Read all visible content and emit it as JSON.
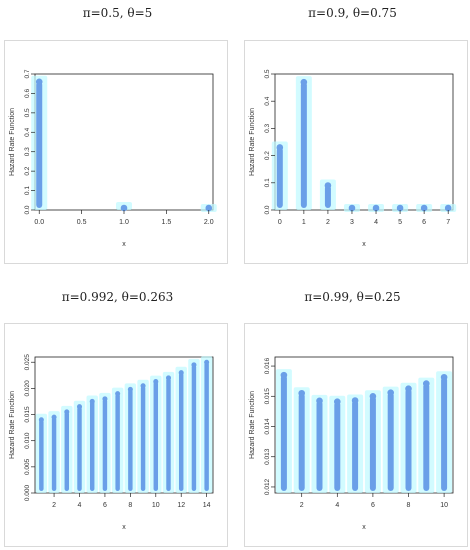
{
  "chart_data": [
    {
      "type": "bar",
      "title": "π=0.5, θ=5",
      "xlabel": "x",
      "ylabel": "Hazard Rate Function",
      "x": [
        0,
        1,
        2
      ],
      "values": [
        0.66,
        0.01,
        0.0
      ],
      "xlim": [
        -0.05,
        2.05
      ],
      "ylim": [
        0,
        0.7
      ],
      "xticks": [
        "0.0",
        "0.5",
        "1.0",
        "1.5",
        "2.0"
      ],
      "xtick_values": [
        0,
        0.5,
        1,
        1.5,
        2
      ],
      "yticks": [
        "0.0",
        "0.1",
        "0.2",
        "0.3",
        "0.4",
        "0.5",
        "0.6",
        "0.7"
      ],
      "ytick_values": [
        0,
        0.1,
        0.2,
        0.3,
        0.4,
        0.5,
        0.6,
        0.7
      ]
    },
    {
      "type": "bar",
      "title": "π=0.9, θ=0.75",
      "xlabel": "x",
      "ylabel": "Hazard Rate Function",
      "x": [
        0,
        1,
        2,
        3,
        4,
        5,
        6,
        7
      ],
      "values": [
        0.23,
        0.47,
        0.09,
        0.0,
        0.0,
        0.0,
        0.0,
        0.0
      ],
      "xlim": [
        -0.2,
        7.2
      ],
      "ylim": [
        0,
        0.5
      ],
      "xticks": [
        "0",
        "1",
        "2",
        "3",
        "4",
        "5",
        "6",
        "7"
      ],
      "xtick_values": [
        0,
        1,
        2,
        3,
        4,
        5,
        6,
        7
      ],
      "yticks": [
        "0.0",
        "0.1",
        "0.2",
        "0.3",
        "0.4",
        "0.5"
      ],
      "ytick_values": [
        0,
        0.1,
        0.2,
        0.3,
        0.4,
        0.5
      ]
    },
    {
      "type": "bar",
      "title": "π=0.992, θ=0.263",
      "xlabel": "x",
      "ylabel": "Hazard Rate Function",
      "x": [
        1,
        2,
        3,
        4,
        5,
        6,
        7,
        8,
        9,
        10,
        11,
        12,
        13,
        14
      ],
      "values": [
        0.014,
        0.0145,
        0.0155,
        0.0165,
        0.0175,
        0.018,
        0.019,
        0.0198,
        0.0205,
        0.0213,
        0.022,
        0.023,
        0.0245,
        0.025
      ],
      "xlim": [
        0.5,
        14.5
      ],
      "ylim": [
        0,
        0.026
      ],
      "xticks": [
        "2",
        "4",
        "6",
        "8",
        "10",
        "12",
        "14"
      ],
      "xtick_values": [
        2,
        4,
        6,
        8,
        10,
        12,
        14
      ],
      "yticks": [
        "0.000",
        "0.005",
        "0.010",
        "0.015",
        "0.020",
        "0.025"
      ],
      "ytick_values": [
        0,
        0.005,
        0.01,
        0.015,
        0.02,
        0.025
      ]
    },
    {
      "type": "bar",
      "title": "π=0.99, θ=0.25",
      "xlabel": "x",
      "ylabel": "Hazard Rate Function",
      "x": [
        1,
        2,
        3,
        4,
        5,
        6,
        7,
        8,
        9,
        10
      ],
      "values": [
        0.0157,
        0.0151,
        0.01485,
        0.01482,
        0.01486,
        0.015,
        0.01512,
        0.01525,
        0.01542,
        0.01563
      ],
      "xlim": [
        0.5,
        10.5
      ],
      "ylim": [
        0.0118,
        0.0163
      ],
      "xticks": [
        "2",
        "4",
        "6",
        "8",
        "10"
      ],
      "xtick_values": [
        2,
        4,
        6,
        8,
        10
      ],
      "yticks": [
        "0.012",
        "0.013",
        "0.014",
        "0.015",
        "0.016"
      ],
      "ytick_values": [
        0.012,
        0.013,
        0.014,
        0.015,
        0.016
      ]
    }
  ],
  "colors": {
    "bar": "#6a9fe8",
    "glow": "#bff9ff",
    "axis": "#222222",
    "frame": "#d9d9d9"
  }
}
